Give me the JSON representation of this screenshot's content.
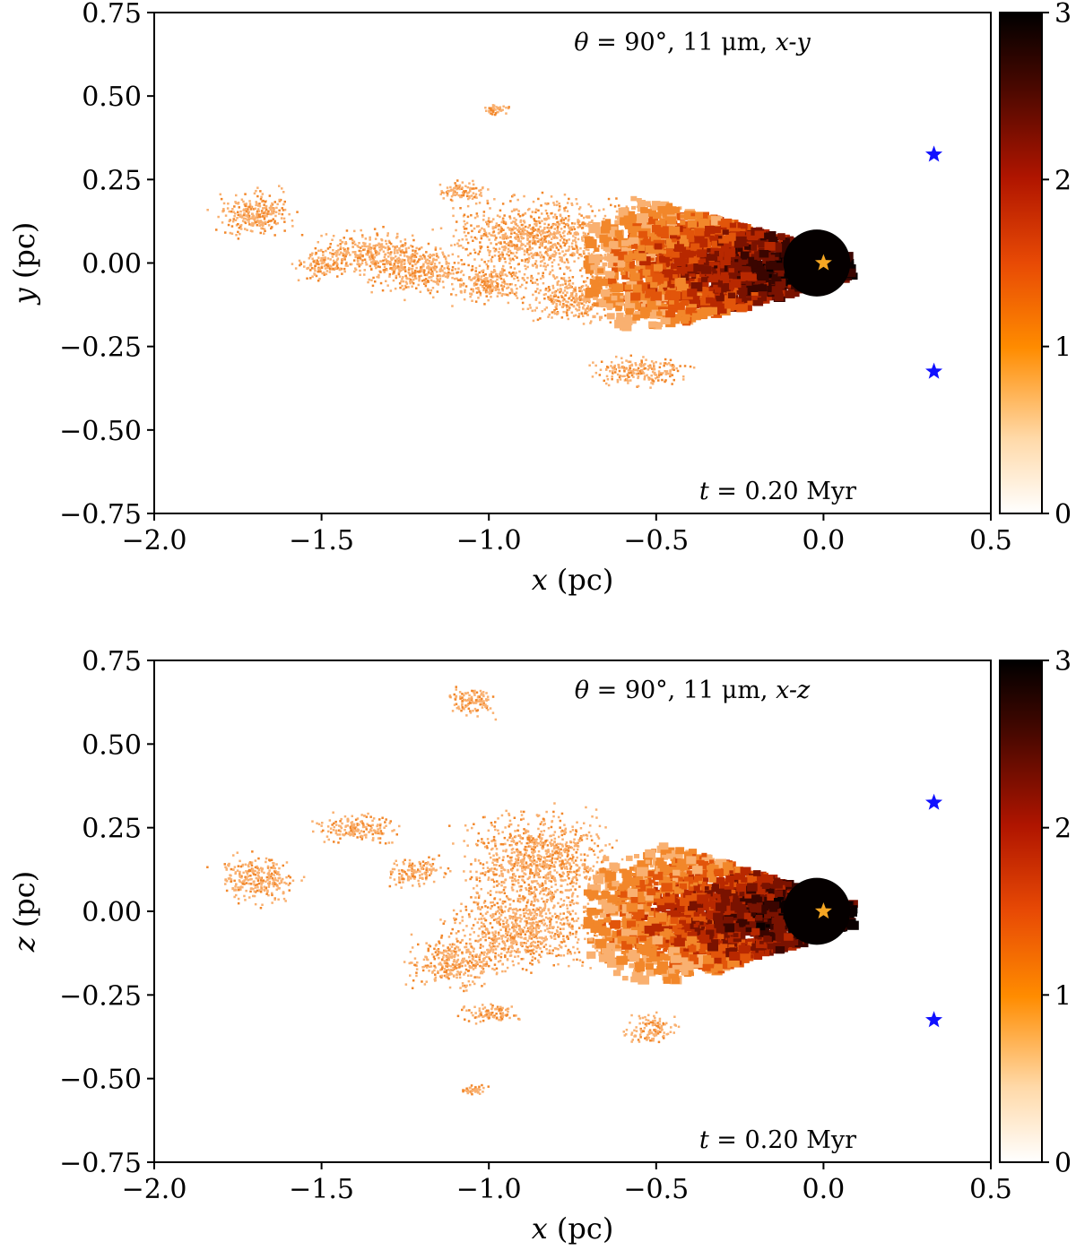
{
  "chart_data": [
    {
      "type": "heatmap",
      "xlabel_var": "x",
      "xlabel_unit": "(pc)",
      "ylabel_var": "y",
      "ylabel_unit": "(pc)",
      "xlim": [
        -2.0,
        0.5
      ],
      "ylim": [
        -0.75,
        0.75
      ],
      "x_ticks": [
        "−2.0",
        "−1.5",
        "−1.0",
        "−0.5",
        "0.0",
        "0.5"
      ],
      "x_tick_values": [
        -2.0,
        -1.5,
        -1.0,
        -0.5,
        0.0,
        0.5
      ],
      "y_ticks": [
        "−0.75",
        "−0.50",
        "−0.25",
        "0.00",
        "0.25",
        "0.50",
        "0.75"
      ],
      "y_tick_values": [
        -0.75,
        -0.5,
        -0.25,
        0.0,
        0.25,
        0.5,
        0.75
      ],
      "annotation_theta": "θ",
      "annotation_rest": " = 90°, 11 μm, ",
      "annotation_proj": "x-y",
      "time_var": "t",
      "time_rest": " = 0.20 Myr",
      "colorbar": {
        "min": 0,
        "max": 3,
        "ticks": [
          "0",
          "1",
          "2",
          "3"
        ],
        "tick_values": [
          0,
          1,
          2,
          3
        ],
        "colors": [
          "#ffffff",
          "#ff8c00",
          "#c81e00",
          "#000000"
        ]
      },
      "stars": [
        {
          "x": 0.0,
          "y": 0.0,
          "color": "#f5a623"
        },
        {
          "x": 0.33,
          "y": 0.325,
          "color": "#1010ff"
        },
        {
          "x": 0.33,
          "y": -0.325,
          "color": "#1010ff"
        }
      ]
    },
    {
      "type": "heatmap",
      "xlabel_var": "x",
      "xlabel_unit": "(pc)",
      "ylabel_var": "z",
      "ylabel_unit": "(pc)",
      "xlim": [
        -2.0,
        0.5
      ],
      "ylim": [
        -0.75,
        0.75
      ],
      "x_ticks": [
        "−2.0",
        "−1.5",
        "−1.0",
        "−0.5",
        "0.0",
        "0.5"
      ],
      "x_tick_values": [
        -2.0,
        -1.5,
        -1.0,
        -0.5,
        0.0,
        0.5
      ],
      "y_ticks": [
        "−0.75",
        "−0.50",
        "−0.25",
        "0.00",
        "0.25",
        "0.50",
        "0.75"
      ],
      "y_tick_values": [
        -0.75,
        -0.5,
        -0.25,
        0.0,
        0.25,
        0.5,
        0.75
      ],
      "annotation_theta": "θ",
      "annotation_rest": " = 90°, 11 μm, ",
      "annotation_proj": "x-z",
      "time_var": "t",
      "time_rest": " = 0.20 Myr",
      "colorbar": {
        "min": 0,
        "max": 3,
        "ticks": [
          "0",
          "1",
          "2",
          "3"
        ],
        "tick_values": [
          0,
          1,
          2,
          3
        ],
        "colors": [
          "#ffffff",
          "#ff8c00",
          "#c81e00",
          "#000000"
        ]
      },
      "stars": [
        {
          "x": 0.0,
          "y": 0.0,
          "color": "#f5a623"
        },
        {
          "x": 0.33,
          "y": 0.325,
          "color": "#1010ff"
        },
        {
          "x": 0.33,
          "y": -0.325,
          "color": "#1010ff"
        }
      ]
    }
  ]
}
